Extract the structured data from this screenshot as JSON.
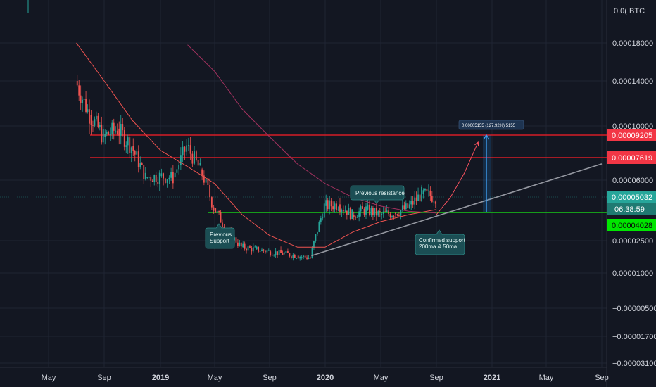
{
  "chart_data": {
    "type": "candlestick",
    "title": "",
    "xlabel": "",
    "ylabel": "",
    "currency_label": "0.0( BTC",
    "grid": true,
    "legend": "none",
    "price_axis": {
      "position": "right",
      "ticks": [
        {
          "label": "0.00018000",
          "value": 0.00018
        },
        {
          "label": "0.00014000",
          "value": 0.00014
        },
        {
          "label": "0.00010000",
          "value": 0.0001
        },
        {
          "label": "0.00006000",
          "value": 6e-05
        },
        {
          "label": "0.00002500",
          "value": 2.5e-05
        },
        {
          "label": "0.00001000",
          "value": 1e-05
        },
        {
          "label": "−0.00000500",
          "value": -5e-06
        },
        {
          "label": "−0.00001700",
          "value": -1.7e-05
        },
        {
          "label": "−0.00003100",
          "value": -3.1e-05
        }
      ]
    },
    "time_axis": {
      "ticks": [
        {
          "label": "May",
          "date": "2018-05",
          "major": false
        },
        {
          "label": "Sep",
          "date": "2018-09",
          "major": false
        },
        {
          "label": "2019",
          "date": "2019-01",
          "major": true
        },
        {
          "label": "May",
          "date": "2019-05",
          "major": false
        },
        {
          "label": "Sep",
          "date": "2019-09",
          "major": false
        },
        {
          "label": "2020",
          "date": "2020-01",
          "major": true
        },
        {
          "label": "May",
          "date": "2020-05",
          "major": false
        },
        {
          "label": "Sep",
          "date": "2020-09",
          "major": false
        },
        {
          "label": "2021",
          "date": "2021-01",
          "major": true
        },
        {
          "label": "May",
          "date": "2021-05",
          "major": false
        },
        {
          "label": "Sep",
          "date": "2021-09",
          "major": false
        }
      ]
    },
    "price_labels": {
      "top_resistance": {
        "label": "0.00009205",
        "value": 9.205e-05,
        "color": "#f23645"
      },
      "second_resistance": {
        "label": "0.00007619",
        "value": 7.619e-05,
        "color": "#f23645"
      },
      "last_price": {
        "label": "0.00005032",
        "value": 5.032e-05,
        "color": "#26a69a"
      },
      "countdown": {
        "label": "06:38:59",
        "color": "#26a69a"
      },
      "support": {
        "label": "0.00004028",
        "value": 4.028e-05,
        "color": "#00e600"
      }
    },
    "annotations": [
      {
        "text": "Previous resistance",
        "date": "2020-04"
      },
      {
        "text": "Previous\nSupport",
        "date": "2019-04"
      },
      {
        "text": "Confirmed support\n200ma & 50ma",
        "date": "2020-09"
      }
    ],
    "measurement": {
      "text": "0.00005155 (127.92%) 5155",
      "from_value": 4.028e-05,
      "to_value": 9.205e-05,
      "date": "2020-12"
    },
    "series": [
      {
        "kind": "candles",
        "color_up": "#26a69a",
        "color_down": "#ef5350",
        "points": [
          {
            "date": "2018-07",
            "close": 0.00014
          },
          {
            "date": "2018-08",
            "close": 0.00011
          },
          {
            "date": "2018-09",
            "close": 9.2e-05
          },
          {
            "date": "2018-10",
            "close": 9.8e-05
          },
          {
            "date": "2018-11",
            "close": 8.5e-05
          },
          {
            "date": "2018-12",
            "close": 6.2e-05
          },
          {
            "date": "2019-01",
            "close": 6.3e-05
          },
          {
            "date": "2019-02",
            "close": 6.2e-05
          },
          {
            "date": "2019-03",
            "close": 8.5e-05
          },
          {
            "date": "2019-04",
            "close": 6.8e-05
          },
          {
            "date": "2019-05",
            "close": 4.4e-05
          },
          {
            "date": "2019-06",
            "close": 3e-05
          },
          {
            "date": "2019-07",
            "close": 2.2e-05
          },
          {
            "date": "2019-08",
            "close": 2.1e-05
          },
          {
            "date": "2019-09",
            "close": 2e-05
          },
          {
            "date": "2019-10",
            "close": 1.9e-05
          },
          {
            "date": "2019-11",
            "close": 1.8e-05
          },
          {
            "date": "2019-12",
            "close": 1.7e-05
          },
          {
            "date": "2020-01",
            "close": 4.5e-05
          },
          {
            "date": "2020-02",
            "close": 4.6e-05
          },
          {
            "date": "2020-03",
            "close": 4e-05
          },
          {
            "date": "2020-04",
            "close": 4.3e-05
          },
          {
            "date": "2020-05",
            "close": 4e-05
          },
          {
            "date": "2020-06",
            "close": 4.1e-05
          },
          {
            "date": "2020-07",
            "close": 4.4e-05
          },
          {
            "date": "2020-08",
            "close": 5.2e-05
          },
          {
            "date": "2020-09",
            "close": 5.032e-05
          }
        ]
      },
      {
        "kind": "moving-average",
        "color": "#ef5350",
        "points": [
          {
            "date": "2018-07",
            "value": 0.00018
          },
          {
            "date": "2018-09",
            "value": 0.00014
          },
          {
            "date": "2018-11",
            "value": 0.000105
          },
          {
            "date": "2019-01",
            "value": 8.2e-05
          },
          {
            "date": "2019-03",
            "value": 7e-05
          },
          {
            "date": "2019-05",
            "value": 5.8e-05
          },
          {
            "date": "2019-07",
            "value": 4e-05
          },
          {
            "date": "2019-09",
            "value": 2.8e-05
          },
          {
            "date": "2019-11",
            "value": 2.2e-05
          },
          {
            "date": "2020-01",
            "value": 2.2e-05
          },
          {
            "date": "2020-03",
            "value": 3e-05
          },
          {
            "date": "2020-05",
            "value": 3.6e-05
          },
          {
            "date": "2020-07",
            "value": 4e-05
          },
          {
            "date": "2020-09",
            "value": 4.3e-05
          }
        ]
      },
      {
        "kind": "moving-average",
        "color": "#a3325f",
        "points": [
          {
            "date": "2019-03",
            "value": 0.000178
          },
          {
            "date": "2019-05",
            "value": 0.00015
          },
          {
            "date": "2019-07",
            "value": 0.000115
          },
          {
            "date": "2019-09",
            "value": 9.2e-05
          },
          {
            "date": "2019-11",
            "value": 7.2e-05
          },
          {
            "date": "2020-01",
            "value": 5.8e-05
          },
          {
            "date": "2020-03",
            "value": 5e-05
          },
          {
            "date": "2020-05",
            "value": 4.5e-05
          },
          {
            "date": "2020-07",
            "value": 4.2e-05
          },
          {
            "date": "2020-09",
            "value": 4.1e-05
          }
        ]
      },
      {
        "kind": "trendline",
        "color": "#9598a1",
        "points": [
          {
            "date": "2019-12",
            "value": 1.8e-05
          },
          {
            "date": "2021-09",
            "value": 7.2e-05
          }
        ]
      },
      {
        "kind": "projection-curve",
        "color": "#f7525f",
        "points": [
          {
            "date": "2020-09",
            "value": 4e-05
          },
          {
            "date": "2020-10",
            "value": 5e-05
          },
          {
            "date": "2020-11",
            "value": 6.5e-05
          },
          {
            "date": "2020-12",
            "value": 8.8e-05
          }
        ]
      }
    ]
  }
}
